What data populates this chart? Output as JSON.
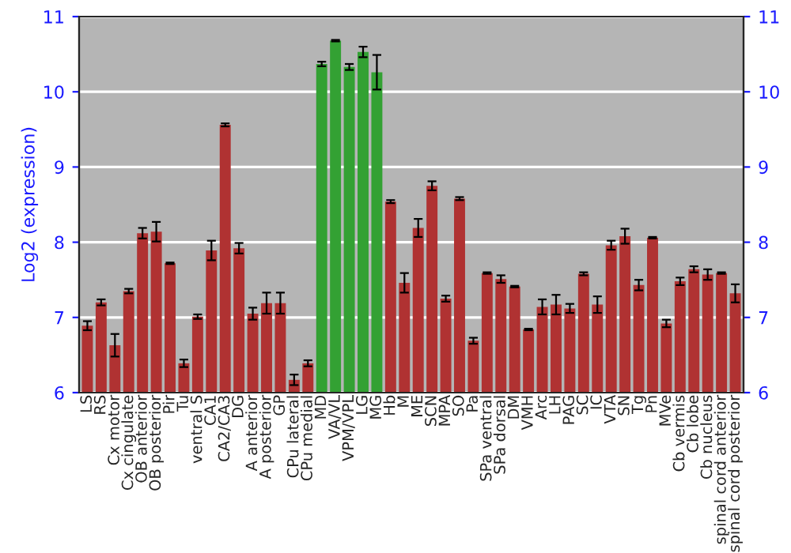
{
  "chart_data": {
    "type": "bar",
    "ylabel": "Log2 (expression)",
    "categories": [
      "LS",
      "RS",
      "Cx motor",
      "Cx cingulate",
      "OB anterior",
      "OB posterior",
      "Pir",
      "Tu",
      "ventral S",
      "CA1",
      "CA2/CA3",
      "DG",
      "A anterior",
      "A posterior",
      "GP",
      "CPu lateral",
      "CPu medial",
      "MD",
      "VA/VL",
      "VPM/VPL",
      "LG",
      "MG",
      "Hb",
      "M",
      "ME",
      "SCN",
      "MPA",
      "SO",
      "Pa",
      "SPa ventral",
      "SPa dorsal",
      "DM",
      "VMH",
      "Arc",
      "LH",
      "PAG",
      "SC",
      "IC",
      "VTA",
      "SN",
      "Tg",
      "Pn",
      "MVe",
      "Cb vermis",
      "Cb lobe",
      "Cb nucleus",
      "spinal cord anterior",
      "spinal cord posterior"
    ],
    "values": [
      6.89,
      7.2,
      6.63,
      7.35,
      8.12,
      8.14,
      7.72,
      6.39,
      7.01,
      7.89,
      9.56,
      7.92,
      7.05,
      7.19,
      7.19,
      6.17,
      6.39,
      10.37,
      10.68,
      10.33,
      10.53,
      10.26,
      8.54,
      7.46,
      8.19,
      8.75,
      7.25,
      8.58,
      6.69,
      7.59,
      7.51,
      7.41,
      6.84,
      7.14,
      7.17,
      7.12,
      7.58,
      7.17,
      7.96,
      8.08,
      7.43,
      8.06,
      6.92,
      7.48,
      7.64,
      7.57,
      7.59,
      7.32
    ],
    "errors": [
      0.06,
      0.04,
      0.15,
      0.03,
      0.07,
      0.13,
      0.01,
      0.05,
      0.03,
      0.13,
      0.02,
      0.07,
      0.08,
      0.14,
      0.14,
      0.07,
      0.04,
      0.03,
      0.01,
      0.04,
      0.07,
      0.23,
      0.02,
      0.13,
      0.12,
      0.06,
      0.04,
      0.02,
      0.04,
      0.01,
      0.05,
      0.01,
      0.01,
      0.1,
      0.13,
      0.06,
      0.02,
      0.11,
      0.06,
      0.1,
      0.07,
      0.01,
      0.05,
      0.05,
      0.04,
      0.07,
      0.01,
      0.12
    ],
    "colors": [
      "#b03232",
      "#b03232",
      "#b03232",
      "#b03232",
      "#b03232",
      "#b03232",
      "#b03232",
      "#b03232",
      "#b03232",
      "#b03232",
      "#b03232",
      "#b03232",
      "#b03232",
      "#b03232",
      "#b03232",
      "#b03232",
      "#b03232",
      "#33a133",
      "#33a133",
      "#33a133",
      "#33a133",
      "#33a133",
      "#b03232",
      "#b03232",
      "#b03232",
      "#b03232",
      "#b03232",
      "#b03232",
      "#b03232",
      "#b03232",
      "#b03232",
      "#b03232",
      "#b03232",
      "#b03232",
      "#b03232",
      "#b03232",
      "#b03232",
      "#b03232",
      "#b03232",
      "#b03232",
      "#b03232",
      "#b03232",
      "#b03232",
      "#b03232",
      "#b03232",
      "#b03232",
      "#b03232",
      "#b03232"
    ],
    "ylim": [
      6,
      11
    ],
    "yticks": [
      6,
      7,
      8,
      9,
      10,
      11
    ],
    "y2lim": [
      6,
      11
    ],
    "y2ticks": [
      6,
      7,
      8,
      9,
      10,
      11
    ],
    "grid": "y"
  }
}
